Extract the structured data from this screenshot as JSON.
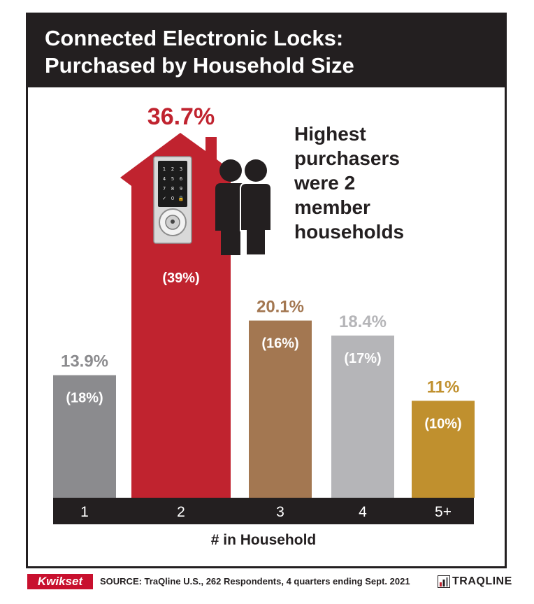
{
  "title": {
    "line1": "Connected Electronic Locks:",
    "line2": "Purchased by Household Size"
  },
  "callout": {
    "lines": [
      "Highest",
      "purchasers",
      "were 2",
      "member",
      "households"
    ]
  },
  "icons": [
    "house-lock-icon",
    "two-people-icon",
    "traqline-chart-icon"
  ],
  "keypad_digits": [
    "1",
    "2",
    "3",
    "4",
    "5",
    "6",
    "7",
    "8",
    "9",
    "✓",
    "0",
    "🔒"
  ],
  "chart_data": {
    "type": "bar",
    "categories": [
      "1",
      "2",
      "3",
      "4",
      "5+"
    ],
    "values": [
      13.9,
      36.7,
      20.1,
      18.4,
      11
    ],
    "value_labels": [
      "13.9%",
      "36.7%",
      "20.1%",
      "18.4%",
      "11%"
    ],
    "secondary_labels": [
      "(18%)",
      "(39%)",
      "(16%)",
      "(17%)",
      "(10%)"
    ],
    "bar_colors": [
      "#8b8b8e",
      "#c0232f",
      "#a37751",
      "#b5b5b8",
      "#c0902e"
    ],
    "label_colors": [
      "#8b8b8e",
      "#c0232f",
      "#a37751",
      "#b5b5b8",
      "#c0902e"
    ],
    "xlabel": "# in Household",
    "ylabel": "",
    "ylim": [
      0,
      46
    ],
    "grid": false,
    "legend": "none"
  },
  "footer": {
    "brand": "Kwikset",
    "source": "SOURCE: TraQline U.S., 262 Respondents, 4 quarters ending Sept. 2021",
    "logo_text": "TRAQLINE"
  },
  "colors": {
    "dark": "#231f20",
    "accent_red": "#c8102e"
  }
}
